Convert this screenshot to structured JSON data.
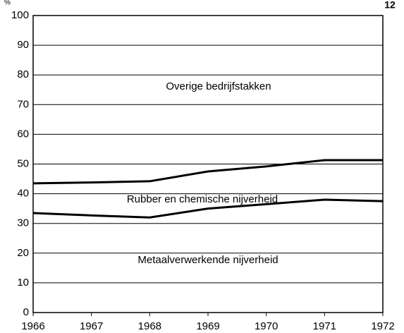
{
  "chart_data": {
    "type": "line",
    "y_label": "%",
    "page_number": "12",
    "annotations": [
      "Overige bedrijfstakken",
      "Rubber en chemische nijverheid",
      "Metaalverwerkende nijverheid"
    ],
    "x": [
      1966,
      1967,
      1968,
      1969,
      1970,
      1971,
      1972
    ],
    "series": [
      {
        "color": "#000000",
        "values": [
          43.5,
          43.8,
          44.2,
          47.5,
          49.2,
          51.3,
          51.3
        ]
      },
      {
        "color": "#000000",
        "values": [
          33.5,
          32.7,
          32,
          35,
          36.5,
          38,
          37.5
        ]
      }
    ],
    "xlim": [
      1966,
      1972
    ],
    "xticks": [
      1966,
      1967,
      1968,
      1969,
      1970,
      1971,
      1972
    ],
    "ylim": [
      0,
      100
    ],
    "yticks": [
      0,
      10,
      20,
      30,
      40,
      50,
      60,
      70,
      80,
      90,
      100
    ],
    "grid": true
  }
}
